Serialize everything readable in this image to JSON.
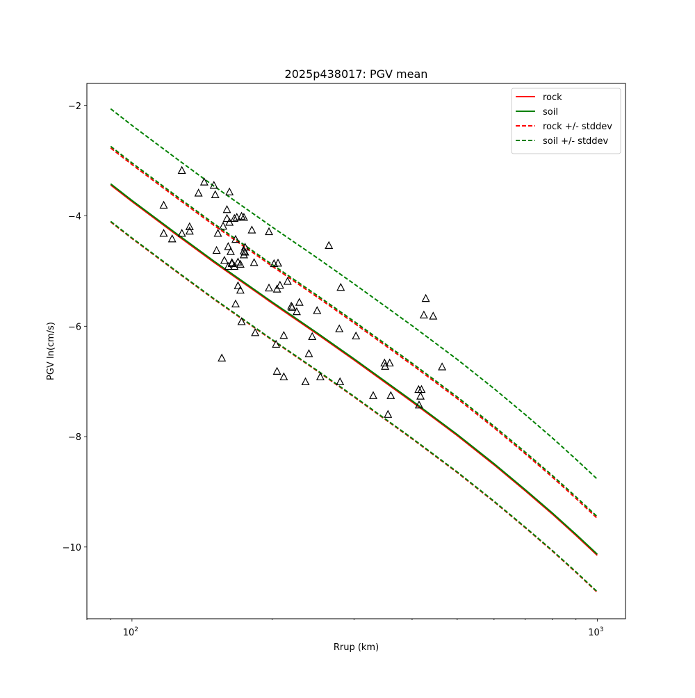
{
  "chart_data": {
    "type": "scatter",
    "title": "2025p438017: PGV mean",
    "xlabel": "Rrup (km)",
    "ylabel": "PGV ln(cm/s)",
    "xscale": "log",
    "xlim": [
      80,
      1150
    ],
    "ylim": [
      -11.3,
      -1.6
    ],
    "grid": false,
    "legend_position": "top-right",
    "x_ticks": [
      {
        "value": 100,
        "base": "10",
        "exp": "2"
      },
      {
        "value": 1000,
        "base": "10",
        "exp": "3"
      }
    ],
    "x_minor_ticks": [
      80,
      90,
      200,
      300,
      400,
      500,
      600,
      700,
      800,
      900
    ],
    "y_ticks": [
      {
        "value": -10,
        "label": "−10"
      },
      {
        "value": -8,
        "label": "−8"
      },
      {
        "value": -6,
        "label": "−6"
      },
      {
        "value": -4,
        "label": "−4"
      },
      {
        "value": -2,
        "label": "−2"
      }
    ],
    "legend": [
      {
        "label": "rock",
        "color": "#ff0000",
        "dashed": false
      },
      {
        "label": "soil",
        "color": "#008000",
        "dashed": false
      },
      {
        "label": "rock +/- stddev",
        "color": "#ff0000",
        "dashed": true
      },
      {
        "label": "soil +/- stddev",
        "color": "#008000",
        "dashed": true
      }
    ],
    "x": [
      90,
      100,
      125,
      150,
      200,
      250,
      300,
      400,
      500,
      600,
      700,
      800,
      900,
      1000
    ],
    "series": [
      {
        "name": "rock",
        "color": "#ff0000",
        "dashed": false,
        "values": [
          -3.44,
          -3.74,
          -4.35,
          -4.84,
          -5.58,
          -6.14,
          -6.61,
          -7.37,
          -7.98,
          -8.51,
          -8.98,
          -9.4,
          -9.79,
          -10.15
        ]
      },
      {
        "name": "soil",
        "color": "#008000",
        "dashed": false,
        "values": [
          -3.42,
          -3.72,
          -4.33,
          -4.82,
          -5.56,
          -6.12,
          -6.59,
          -7.35,
          -7.96,
          -8.49,
          -8.96,
          -9.38,
          -9.77,
          -10.13
        ]
      },
      {
        "name": "rock +/- stddev",
        "color": "#ff0000",
        "dashed": true,
        "values": [
          -2.77,
          -3.07,
          -3.68,
          -4.17,
          -4.91,
          -5.47,
          -5.94,
          -6.7,
          -7.31,
          -7.84,
          -8.31,
          -8.73,
          -9.12,
          -9.48
        ]
      },
      {
        "name": "rock +/- stddev",
        "color": "#ff0000",
        "dashed": true,
        "values": [
          -4.11,
          -4.41,
          -5.02,
          -5.51,
          -6.25,
          -6.81,
          -7.28,
          -8.04,
          -8.65,
          -9.18,
          -9.65,
          -10.07,
          -10.46,
          -10.82
        ]
      },
      {
        "name": "soil +/- stddev",
        "color": "#008000",
        "dashed": true,
        "values": [
          -2.74,
          -3.04,
          -3.65,
          -4.14,
          -4.88,
          -5.44,
          -5.91,
          -6.67,
          -7.28,
          -7.81,
          -8.28,
          -8.7,
          -9.09,
          -9.45
        ]
      },
      {
        "name": "soil +/- stddev",
        "color": "#008000",
        "dashed": true,
        "values": [
          -4.1,
          -4.4,
          -5.01,
          -5.5,
          -6.24,
          -6.8,
          -7.27,
          -8.03,
          -8.64,
          -9.17,
          -9.64,
          -10.06,
          -10.45,
          -10.81
        ]
      },
      {
        "name": "soil +/- stddev",
        "color": "#008000",
        "dashed": true,
        "values": [
          -2.06,
          -2.36,
          -2.97,
          -3.46,
          -4.2,
          -4.76,
          -5.23,
          -5.99,
          -6.6,
          -7.13,
          -7.6,
          -8.02,
          -8.41,
          -8.77
        ]
      }
    ],
    "observations": [
      {
        "x": 117,
        "y": -3.81
      },
      {
        "x": 117,
        "y": -4.32
      },
      {
        "x": 122,
        "y": -4.42
      },
      {
        "x": 128,
        "y": -3.18
      },
      {
        "x": 128,
        "y": -4.32
      },
      {
        "x": 133,
        "y": -4.2
      },
      {
        "x": 133,
        "y": -4.28
      },
      {
        "x": 139,
        "y": -3.59
      },
      {
        "x": 143,
        "y": -3.39
      },
      {
        "x": 150,
        "y": -3.45
      },
      {
        "x": 151,
        "y": -3.62
      },
      {
        "x": 152,
        "y": -4.63
      },
      {
        "x": 153,
        "y": -4.32
      },
      {
        "x": 156,
        "y": -6.58
      },
      {
        "x": 157,
        "y": -4.19
      },
      {
        "x": 158,
        "y": -4.81
      },
      {
        "x": 160,
        "y": -3.89
      },
      {
        "x": 160,
        "y": -4.05
      },
      {
        "x": 161,
        "y": -4.56
      },
      {
        "x": 161,
        "y": -4.92
      },
      {
        "x": 162,
        "y": -3.57
      },
      {
        "x": 162,
        "y": -4.12
      },
      {
        "x": 163,
        "y": -4.65
      },
      {
        "x": 164,
        "y": -4.85
      },
      {
        "x": 164,
        "y": -4.87
      },
      {
        "x": 166,
        "y": -4.05
      },
      {
        "x": 166,
        "y": -4.92
      },
      {
        "x": 167,
        "y": -5.6
      },
      {
        "x": 167,
        "y": -4.43
      },
      {
        "x": 168,
        "y": -4.03
      },
      {
        "x": 169,
        "y": -4.84
      },
      {
        "x": 169,
        "y": -5.27
      },
      {
        "x": 171,
        "y": -4.88
      },
      {
        "x": 171,
        "y": -5.35
      },
      {
        "x": 172,
        "y": -5.92
      },
      {
        "x": 172,
        "y": -4.01
      },
      {
        "x": 174,
        "y": -4.03
      },
      {
        "x": 174,
        "y": -4.64
      },
      {
        "x": 174,
        "y": -4.71
      },
      {
        "x": 175,
        "y": -4.66
      },
      {
        "x": 175,
        "y": -4.57
      },
      {
        "x": 181,
        "y": -4.26
      },
      {
        "x": 183,
        "y": -4.85
      },
      {
        "x": 184,
        "y": -6.12
      },
      {
        "x": 197,
        "y": -4.29
      },
      {
        "x": 197,
        "y": -5.31
      },
      {
        "x": 202,
        "y": -4.87
      },
      {
        "x": 204,
        "y": -6.33
      },
      {
        "x": 205,
        "y": -6.82
      },
      {
        "x": 205,
        "y": -5.33
      },
      {
        "x": 206,
        "y": -4.86
      },
      {
        "x": 208,
        "y": -5.26
      },
      {
        "x": 212,
        "y": -6.17
      },
      {
        "x": 212,
        "y": -6.92
      },
      {
        "x": 216,
        "y": -5.19
      },
      {
        "x": 220,
        "y": -5.64
      },
      {
        "x": 221,
        "y": -5.66
      },
      {
        "x": 226,
        "y": -5.74
      },
      {
        "x": 229,
        "y": -5.57
      },
      {
        "x": 236,
        "y": -7.01
      },
      {
        "x": 240,
        "y": -6.5
      },
      {
        "x": 244,
        "y": -6.19
      },
      {
        "x": 250,
        "y": -5.72
      },
      {
        "x": 254,
        "y": -6.92
      },
      {
        "x": 265,
        "y": -4.54
      },
      {
        "x": 279,
        "y": -6.05
      },
      {
        "x": 280,
        "y": -7.01
      },
      {
        "x": 281,
        "y": -5.3
      },
      {
        "x": 303,
        "y": -6.18
      },
      {
        "x": 330,
        "y": -7.26
      },
      {
        "x": 349,
        "y": -6.67
      },
      {
        "x": 350,
        "y": -6.73
      },
      {
        "x": 355,
        "y": -7.6
      },
      {
        "x": 358,
        "y": -6.67
      },
      {
        "x": 360,
        "y": -7.26
      },
      {
        "x": 413,
        "y": -7.15
      },
      {
        "x": 414,
        "y": -7.43
      },
      {
        "x": 417,
        "y": -7.27
      },
      {
        "x": 419,
        "y": -7.15
      },
      {
        "x": 424,
        "y": -5.8
      },
      {
        "x": 428,
        "y": -5.5
      },
      {
        "x": 444,
        "y": -5.82
      },
      {
        "x": 464,
        "y": -6.74
      }
    ]
  }
}
